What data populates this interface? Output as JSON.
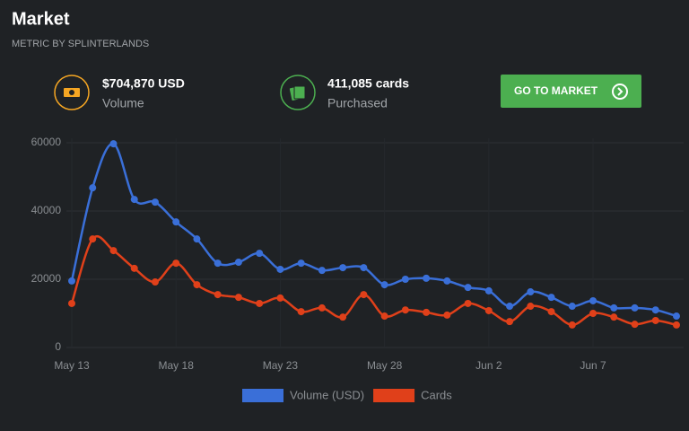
{
  "header": {
    "title": "Market",
    "subtitle": "METRIC BY SPLINTERLANDS"
  },
  "stats": [
    {
      "value": "$704,870 USD",
      "label": "Volume"
    },
    {
      "value": "411,085 cards",
      "label": "Purchased"
    }
  ],
  "button": {
    "label": "GO TO MARKET"
  },
  "chart_data": {
    "type": "line",
    "categories": [
      "May 13",
      null,
      null,
      null,
      null,
      "May 18",
      null,
      null,
      null,
      null,
      "May 23",
      null,
      null,
      null,
      null,
      "May 28",
      null,
      null,
      null,
      null,
      "Jun 2",
      null,
      null,
      null,
      null,
      "Jun 7",
      null,
      null,
      null,
      null
    ],
    "series": [
      {
        "name": "Volume (USD)",
        "color": "#3a6fd8",
        "values": [
          19500,
          46800,
          59700,
          43400,
          42600,
          36800,
          31800,
          24700,
          25000,
          27600,
          22900,
          24700,
          22600,
          23400,
          23400,
          18400,
          20000,
          20300,
          19500,
          17600,
          16600,
          12100,
          16300,
          14700,
          12100,
          13700,
          11600,
          11600,
          11000,
          9200
        ]
      },
      {
        "name": "Cards",
        "color": "#e0401a",
        "values": [
          12900,
          31800,
          28400,
          23200,
          19200,
          24700,
          18400,
          15500,
          14700,
          12900,
          14500,
          10500,
          11600,
          8900,
          15500,
          9200,
          11000,
          10300,
          9500,
          12900,
          10800,
          7600,
          12100,
          10500,
          6600,
          10000,
          8900,
          6800,
          7900,
          6600
        ]
      }
    ],
    "ylim": [
      0,
      60000
    ],
    "yticks": [
      0,
      20000,
      40000,
      60000
    ],
    "grid": true,
    "legend": "bottom"
  }
}
